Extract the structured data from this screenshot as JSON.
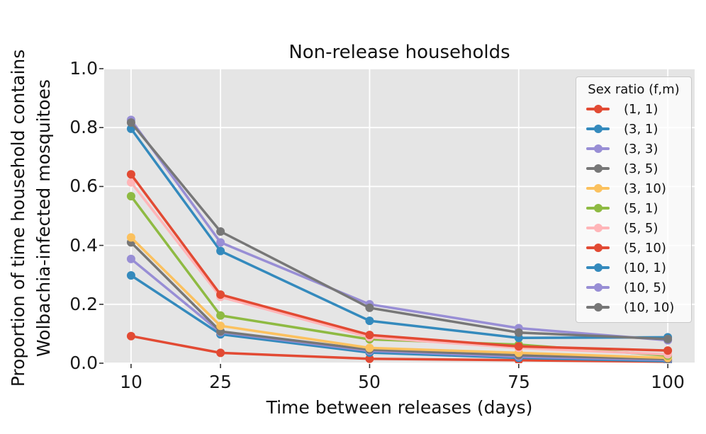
{
  "figure": {
    "title": "Non-release households",
    "xlabel": "Time between releases (days)",
    "ylabel_line1": "Proportion of time household contains",
    "ylabel_line2": "Wolbachia-infected mosquitoes",
    "legend_title": "Sex ratio (f,m)",
    "plot_bg_color": "#e5e5e5",
    "grid_color": "#ffffff",
    "tick_color": "#333333"
  },
  "chart_data": {
    "type": "line",
    "title": "Non-release households",
    "xlabel": "Time between releases (days)",
    "ylabel": "Proportion of time household contains Wolbachia-infected mosquitoes",
    "x": [
      10,
      25,
      50,
      75,
      100
    ],
    "x_tick_labels": [
      "10",
      "25",
      "50",
      "75",
      "100"
    ],
    "y_ticks": [
      0.0,
      0.2,
      0.4,
      0.6,
      0.8,
      1.0
    ],
    "y_tick_labels": [
      "0.0",
      "0.2",
      "0.4",
      "0.6",
      "0.8",
      "1.0"
    ],
    "xlim": [
      5.5,
      104.5
    ],
    "ylim": [
      0.0,
      1.0
    ],
    "grid": true,
    "legend_position": "upper right",
    "legend_title": "Sex ratio (f,m)",
    "marker": "circle",
    "series": [
      {
        "name": "(1, 1)",
        "color": "#E24A33",
        "values": [
          0.092,
          0.035,
          0.015,
          0.01,
          0.005
        ]
      },
      {
        "name": "(3, 1)",
        "color": "#348ABD",
        "values": [
          0.298,
          0.098,
          0.036,
          0.018,
          0.007
        ]
      },
      {
        "name": "(3, 3)",
        "color": "#988ED5",
        "values": [
          0.354,
          0.105,
          0.042,
          0.022,
          0.011
        ]
      },
      {
        "name": "(3, 5)",
        "color": "#777777",
        "values": [
          0.41,
          0.108,
          0.046,
          0.027,
          0.014
        ]
      },
      {
        "name": "(3, 10)",
        "color": "#FBC15E",
        "values": [
          0.427,
          0.127,
          0.052,
          0.035,
          0.018
        ]
      },
      {
        "name": "(5, 1)",
        "color": "#8EBA42",
        "values": [
          0.567,
          0.162,
          0.081,
          0.063,
          0.026
        ]
      },
      {
        "name": "(5, 5)",
        "color": "#FFB5B8",
        "values": [
          0.614,
          0.225,
          0.088,
          0.052,
          0.03
        ]
      },
      {
        "name": "(5, 10)",
        "color": "#E24A33",
        "values": [
          0.641,
          0.233,
          0.096,
          0.057,
          0.043
        ]
      },
      {
        "name": "(10, 1)",
        "color": "#348ABD",
        "values": [
          0.796,
          0.381,
          0.144,
          0.086,
          0.088
        ]
      },
      {
        "name": "(10, 5)",
        "color": "#988ED5",
        "values": [
          0.826,
          0.41,
          0.2,
          0.119,
          0.078
        ]
      },
      {
        "name": "(10, 10)",
        "color": "#777777",
        "values": [
          0.817,
          0.447,
          0.188,
          0.104,
          0.082
        ]
      }
    ]
  }
}
